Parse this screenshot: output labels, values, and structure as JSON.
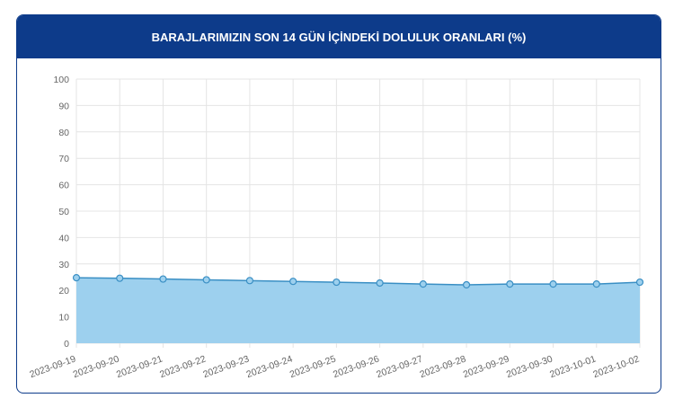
{
  "chart_data": {
    "type": "area",
    "title": "BARAJLARIMIZIN SON 14 GÜN İÇİNDEKİ DOLULUK ORANLARI (%)",
    "x": [
      "2023-09-19",
      "2023-09-20",
      "2023-09-21",
      "2023-09-22",
      "2023-09-23",
      "2023-09-24",
      "2023-09-25",
      "2023-09-26",
      "2023-09-27",
      "2023-09-28",
      "2023-09-29",
      "2023-09-30",
      "2023-10-01",
      "2023-10-02"
    ],
    "values": [
      24.8,
      24.6,
      24.3,
      24.0,
      23.7,
      23.4,
      23.1,
      22.8,
      22.4,
      22.1,
      22.4,
      22.4,
      22.4,
      23.1
    ],
    "color": "#3a8fc4",
    "fill_color": "#9dd0ee",
    "ylim": [
      0,
      100
    ],
    "yticks": [
      0,
      10,
      20,
      30,
      40,
      50,
      60,
      70,
      80,
      90,
      100
    ],
    "grid": true
  }
}
